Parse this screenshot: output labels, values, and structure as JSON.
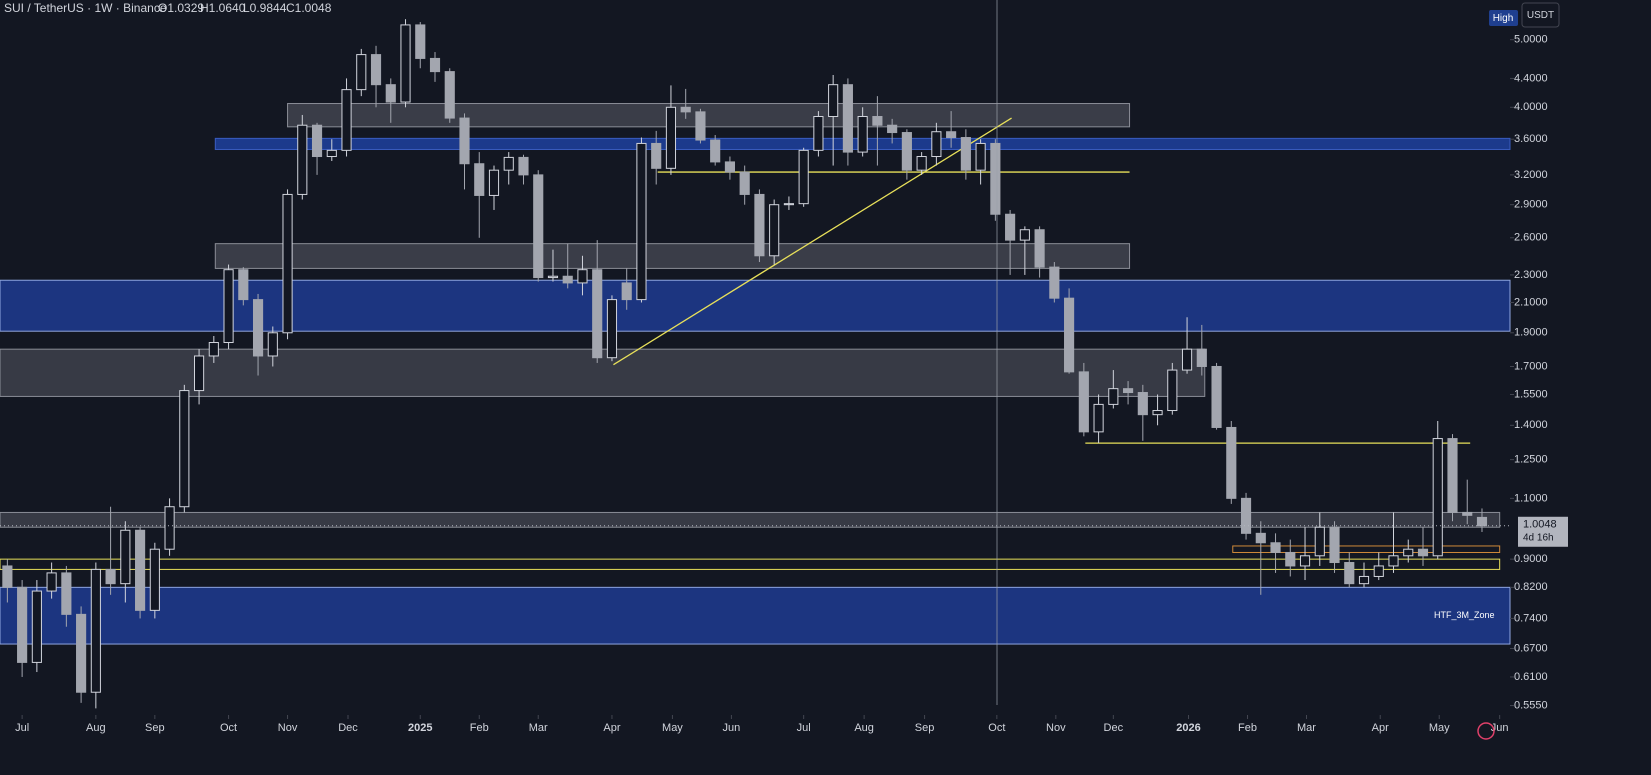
{
  "header": {
    "symbol": "SUI / TetherUS · 1W · Binance",
    "ohlc": [
      "O1.0329",
      "H1.0640",
      "L0.9844",
      "C1.0048"
    ],
    "high_tag": "High",
    "currency": "USDT",
    "countdown": "4d 16h"
  },
  "chart_data": {
    "type": "candlestick",
    "log_scale": true,
    "up_color": "#d1d4dc",
    "down_color": "#a3a6af",
    "background": "#131722",
    "open": [
      0.88,
      0.82,
      0.64,
      0.81,
      0.86,
      0.75,
      0.58,
      0.87,
      0.83,
      0.99,
      0.76,
      0.93,
      1.07,
      1.57,
      1.76,
      1.84,
      2.34,
      2.12,
      1.76,
      1.9,
      3.0,
      3.77,
      3.4,
      3.47,
      4.24,
      4.76,
      4.31,
      4.07,
      5.25,
      4.7,
      4.5,
      3.86,
      3.32,
      2.99,
      3.25,
      3.39,
      3.2,
      2.28,
      2.29,
      2.24,
      2.34,
      1.75,
      2.24,
      2.12,
      3.55,
      3.27,
      4.0,
      3.94,
      3.59,
      3.34,
      3.23,
      3.0,
      2.45,
      2.9,
      2.91,
      3.47,
      3.88,
      4.31,
      3.45,
      3.88,
      3.77,
      3.68,
      3.25,
      3.4,
      3.69,
      3.62,
      3.25,
      3.55,
      2.81,
      2.58,
      2.67,
      2.36,
      2.13,
      1.67,
      1.37,
      1.5,
      1.58,
      1.56,
      1.45,
      1.47,
      1.68,
      1.8,
      1.7,
      1.39,
      1.1,
      0.98,
      0.95,
      0.92,
      0.88,
      0.91,
      1.0,
      0.89,
      0.83,
      0.85,
      0.88,
      0.91,
      0.93,
      0.91,
      1.34,
      1.05,
      1.0329
    ],
    "high": [
      0.9,
      0.84,
      0.84,
      0.89,
      0.88,
      0.77,
      0.89,
      1.07,
      1.02,
      1.0,
      0.95,
      1.1,
      1.6,
      1.8,
      1.88,
      2.38,
      2.36,
      2.16,
      1.94,
      3.05,
      3.9,
      3.8,
      3.6,
      4.4,
      4.85,
      4.9,
      4.4,
      5.35,
      5.3,
      4.8,
      4.55,
      3.92,
      3.45,
      3.3,
      3.45,
      3.42,
      3.25,
      2.5,
      2.55,
      2.45,
      2.58,
      2.15,
      2.35,
      3.62,
      3.7,
      4.3,
      4.25,
      3.98,
      3.65,
      3.4,
      3.3,
      3.05,
      2.95,
      2.98,
      3.5,
      3.95,
      4.45,
      4.4,
      4.0,
      4.15,
      3.85,
      3.72,
      3.45,
      3.8,
      3.95,
      3.72,
      3.6,
      3.6,
      2.85,
      2.7,
      2.7,
      2.4,
      2.2,
      1.72,
      1.55,
      1.68,
      1.62,
      1.6,
      1.55,
      1.72,
      2.0,
      1.95,
      1.72,
      1.42,
      1.12,
      1.02,
      0.98,
      0.96,
      1.0,
      1.05,
      1.02,
      0.92,
      0.89,
      0.92,
      1.05,
      0.96,
      1.0,
      1.42,
      1.36,
      1.17,
      1.064
    ],
    "low": [
      0.78,
      0.61,
      0.62,
      0.79,
      0.72,
      0.56,
      0.55,
      0.8,
      0.78,
      0.74,
      0.74,
      0.91,
      1.05,
      1.5,
      1.72,
      1.8,
      2.08,
      1.65,
      1.7,
      1.86,
      2.95,
      3.2,
      3.35,
      3.4,
      4.15,
      4.0,
      3.8,
      4.0,
      4.55,
      4.35,
      3.8,
      3.05,
      2.6,
      2.85,
      3.1,
      3.1,
      2.25,
      2.25,
      2.2,
      2.15,
      1.72,
      1.73,
      2.05,
      2.1,
      3.1,
      3.2,
      3.85,
      3.55,
      3.3,
      3.15,
      2.9,
      2.4,
      2.38,
      2.85,
      2.88,
      3.4,
      3.3,
      3.3,
      3.4,
      3.3,
      3.55,
      3.15,
      3.2,
      3.3,
      3.5,
      3.15,
      3.1,
      2.75,
      2.3,
      2.3,
      2.28,
      2.1,
      1.66,
      1.35,
      1.32,
      1.48,
      1.5,
      1.33,
      1.4,
      1.45,
      1.66,
      1.65,
      1.38,
      1.08,
      0.96,
      0.8,
      0.86,
      0.85,
      0.84,
      0.88,
      0.86,
      0.82,
      0.82,
      0.84,
      0.86,
      0.89,
      0.88,
      0.9,
      1.02,
      1.01,
      0.9844
    ],
    "close": [
      0.82,
      0.64,
      0.81,
      0.86,
      0.75,
      0.58,
      0.87,
      0.83,
      0.99,
      0.76,
      0.93,
      1.07,
      1.57,
      1.76,
      1.84,
      2.34,
      2.12,
      1.76,
      1.9,
      3.0,
      3.77,
      3.4,
      3.47,
      4.24,
      4.76,
      4.31,
      4.07,
      5.25,
      4.7,
      4.5,
      3.86,
      3.32,
      2.99,
      3.25,
      3.39,
      3.2,
      2.28,
      2.29,
      2.24,
      2.34,
      1.75,
      2.12,
      2.12,
      3.55,
      3.27,
      4.0,
      3.94,
      3.59,
      3.34,
      3.23,
      3.0,
      2.45,
      2.9,
      2.91,
      3.47,
      3.88,
      4.31,
      3.45,
      3.88,
      3.77,
      3.68,
      3.25,
      3.4,
      3.69,
      3.62,
      3.25,
      3.55,
      2.81,
      2.58,
      2.67,
      2.36,
      2.13,
      1.67,
      1.37,
      1.5,
      1.58,
      1.56,
      1.45,
      1.47,
      1.68,
      1.8,
      1.7,
      1.39,
      1.1,
      0.98,
      0.95,
      0.92,
      0.88,
      0.91,
      1.0,
      0.89,
      0.83,
      0.85,
      0.88,
      0.91,
      0.93,
      0.91,
      1.34,
      1.05,
      1.04,
      1.0048
    ],
    "xlim": [
      -0.5,
      101.9
    ],
    "xticks": [
      {
        "value": 1.0,
        "label": "Jul"
      },
      {
        "value": 6.0,
        "label": "Aug"
      },
      {
        "value": 10.0,
        "label": "Sep"
      },
      {
        "value": 15.0,
        "label": "Oct"
      },
      {
        "value": 19.0,
        "label": "Nov"
      },
      {
        "value": 23.1,
        "label": "Dec"
      },
      {
        "value": 28.0,
        "label": "2025"
      },
      {
        "value": 32.0,
        "label": "Feb"
      },
      {
        "value": 36.0,
        "label": "Mar"
      },
      {
        "value": 41.0,
        "label": "Apr"
      },
      {
        "value": 45.1,
        "label": "May"
      },
      {
        "value": 49.1,
        "label": "Jun"
      },
      {
        "value": 54.0,
        "label": "Jul"
      },
      {
        "value": 58.1,
        "label": "Aug"
      },
      {
        "value": 62.2,
        "label": "Sep"
      },
      {
        "value": 67.1,
        "label": "Oct"
      },
      {
        "value": 71.1,
        "label": "Nov"
      },
      {
        "value": 75.0,
        "label": "Dec"
      },
      {
        "value": 80.1,
        "label": "2026"
      },
      {
        "value": 84.1,
        "label": "Feb"
      },
      {
        "value": 88.1,
        "label": "Mar"
      },
      {
        "value": 93.1,
        "label": "Apr"
      },
      {
        "value": 97.1,
        "label": "May"
      },
      {
        "value": 101.2,
        "label": "Jun"
      }
    ],
    "ylim": [
      0.538,
      5.7
    ],
    "yticks": [
      {
        "value": 5.0,
        "label": "5.0000"
      },
      {
        "value": 4.4,
        "label": "4.4000"
      },
      {
        "value": 4.0,
        "label": "4.0000"
      },
      {
        "value": 3.6,
        "label": "3.6000"
      },
      {
        "value": 3.2,
        "label": "3.2000"
      },
      {
        "value": 2.9,
        "label": "2.9000"
      },
      {
        "value": 2.6,
        "label": "2.6000"
      },
      {
        "value": 2.3,
        "label": "2.3000"
      },
      {
        "value": 2.1,
        "label": "2.1000"
      },
      {
        "value": 1.9,
        "label": "1.9000"
      },
      {
        "value": 1.7,
        "label": "1.7000"
      },
      {
        "value": 1.55,
        "label": "1.5500"
      },
      {
        "value": 1.4,
        "label": "1.4000"
      },
      {
        "value": 1.25,
        "label": "1.2500"
      },
      {
        "value": 1.1,
        "label": "1.1000"
      },
      {
        "value": 0.9,
        "label": "0.9000"
      },
      {
        "value": 0.82,
        "label": "0.8200"
      },
      {
        "value": 0.74,
        "label": "0.7400"
      },
      {
        "value": 0.67,
        "label": "0.6700"
      },
      {
        "value": 0.61,
        "label": "0.6100"
      },
      {
        "value": 0.555,
        "label": "0.5550"
      }
    ],
    "zones": [
      {
        "low": 3.75,
        "high": 4.05,
        "start": 19.0,
        "end": 76.1,
        "color": "rgba(200,202,210,0.22)",
        "border": "#8a8d96"
      },
      {
        "low": 3.48,
        "high": 3.61,
        "start": 14.1,
        "end": 101.9,
        "color": "#1c3a8c",
        "border": "#3a5cc0"
      },
      {
        "low": 2.35,
        "high": 2.55,
        "start": 14.1,
        "end": 76.1,
        "color": "rgba(200,202,210,0.22)",
        "border": "#8a8d96"
      },
      {
        "low": 1.91,
        "high": 2.26,
        "start": -0.5,
        "end": 101.9,
        "color": "#1c3580",
        "border": "#8fa6e0"
      },
      {
        "low": 1.54,
        "high": 1.8,
        "start": -0.5,
        "end": 81.2,
        "color": "rgba(200,202,210,0.2)",
        "border": "#8a8d96"
      },
      {
        "low": 1.0,
        "high": 1.05,
        "start": -0.5,
        "end": 101.2,
        "color": "rgba(200,202,210,0.2)",
        "border": "#8a8d96"
      },
      {
        "low": 0.92,
        "high": 0.94,
        "start": 83.1,
        "end": 101.2,
        "color": "rgba(0,0,0,0)",
        "border": "#d08a3a"
      },
      {
        "low": 0.87,
        "high": 0.9,
        "start": -0.5,
        "end": 101.2,
        "color": "rgba(0,0,0,0)",
        "border": "#e8e05a"
      },
      {
        "low": 0.68,
        "high": 0.82,
        "start": -0.5,
        "end": 101.9,
        "color": "#1c3580",
        "border": "#8fa6e0",
        "label": "HTF_3M_Zone"
      }
    ],
    "lines": [
      {
        "x": [
          44.1,
          76.1
        ],
        "y": [
          3.23,
          3.23
        ],
        "color": "#e8e05a"
      },
      {
        "x": [
          73.1,
          99.2
        ],
        "y": [
          1.32,
          1.32
        ],
        "color": "#e8e05a"
      },
      {
        "x": [
          41.1,
          68.1
        ],
        "y": [
          1.71,
          3.86
        ],
        "color": "#e8e05a"
      }
    ]
  }
}
